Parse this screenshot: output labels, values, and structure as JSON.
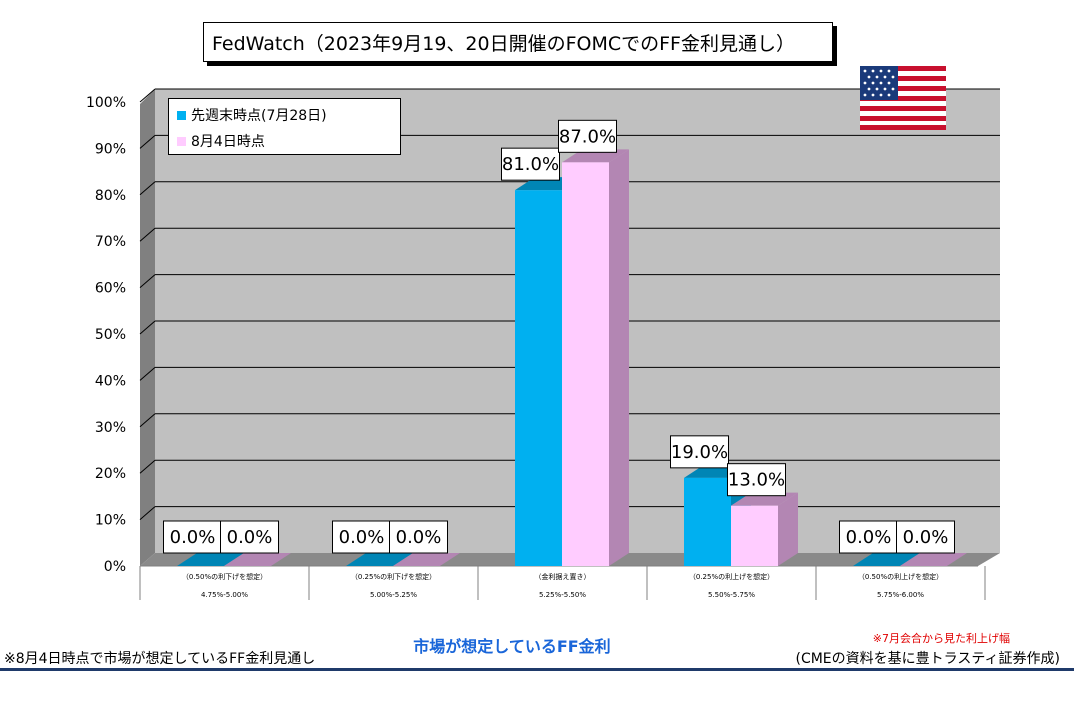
{
  "title": "FedWatch（2023年9月19、20日開催のFOMCでのFF金利見通し）",
  "legend": [
    {
      "label": "先週末時点(7月28日)",
      "color": "#00b0f0"
    },
    {
      "label": "8月4日時点",
      "color": "#ffccff"
    }
  ],
  "chart_data": {
    "type": "bar",
    "title": "FedWatch（2023年9月19、20日開催のFOMCでのFF金利見通し）",
    "categories": [
      "4.75%-5.00%",
      "5.00%-5.25%",
      "5.25%-5.50%",
      "5.50%-5.75%",
      "5.75%-6.00%"
    ],
    "category_notes": [
      "（0.50%の利下げを想定）",
      "（0.25%の利下げを想定）",
      "（金利据え置き）",
      "（0.25%の利上げを想定）",
      "（0.50%の利上げを想定）"
    ],
    "series": [
      {
        "name": "先週末時点(7月28日)",
        "values": [
          0.0,
          0.0,
          81.0,
          19.0,
          0.0
        ],
        "labels": [
          "0.0%",
          "0.0%",
          "81.0%",
          "19.0%",
          "0.0%"
        ]
      },
      {
        "name": "8月4日時点",
        "values": [
          0.0,
          0.0,
          87.0,
          13.0,
          0.0
        ],
        "labels": [
          "0.0%",
          "0.0%",
          "87.0%",
          "13.0%",
          "0.0%"
        ]
      }
    ],
    "yticks": [
      "0%",
      "10%",
      "20%",
      "30%",
      "40%",
      "50%",
      "60%",
      "70%",
      "80%",
      "90%",
      "100%"
    ],
    "ylim": [
      0,
      100
    ],
    "xlabel": "市場が想定しているFF金利",
    "ylabel": "",
    "grid": true,
    "legend_position": "top-left",
    "colors": {
      "series1": "#00b0f0",
      "series1_dark": "#0085b5",
      "series2": "#ffccff",
      "series2_dark": "#b386b3",
      "wall": "#c0c0c0",
      "wall_side": "#808080",
      "floor": "#808080"
    }
  },
  "footer_note": "※8月4日時点で市場が想定しているFF金利見通し",
  "side_note": "※7月会合から見た利上げ幅",
  "source_note": "(CMEの資料を基に豊トラスティ証券作成)"
}
